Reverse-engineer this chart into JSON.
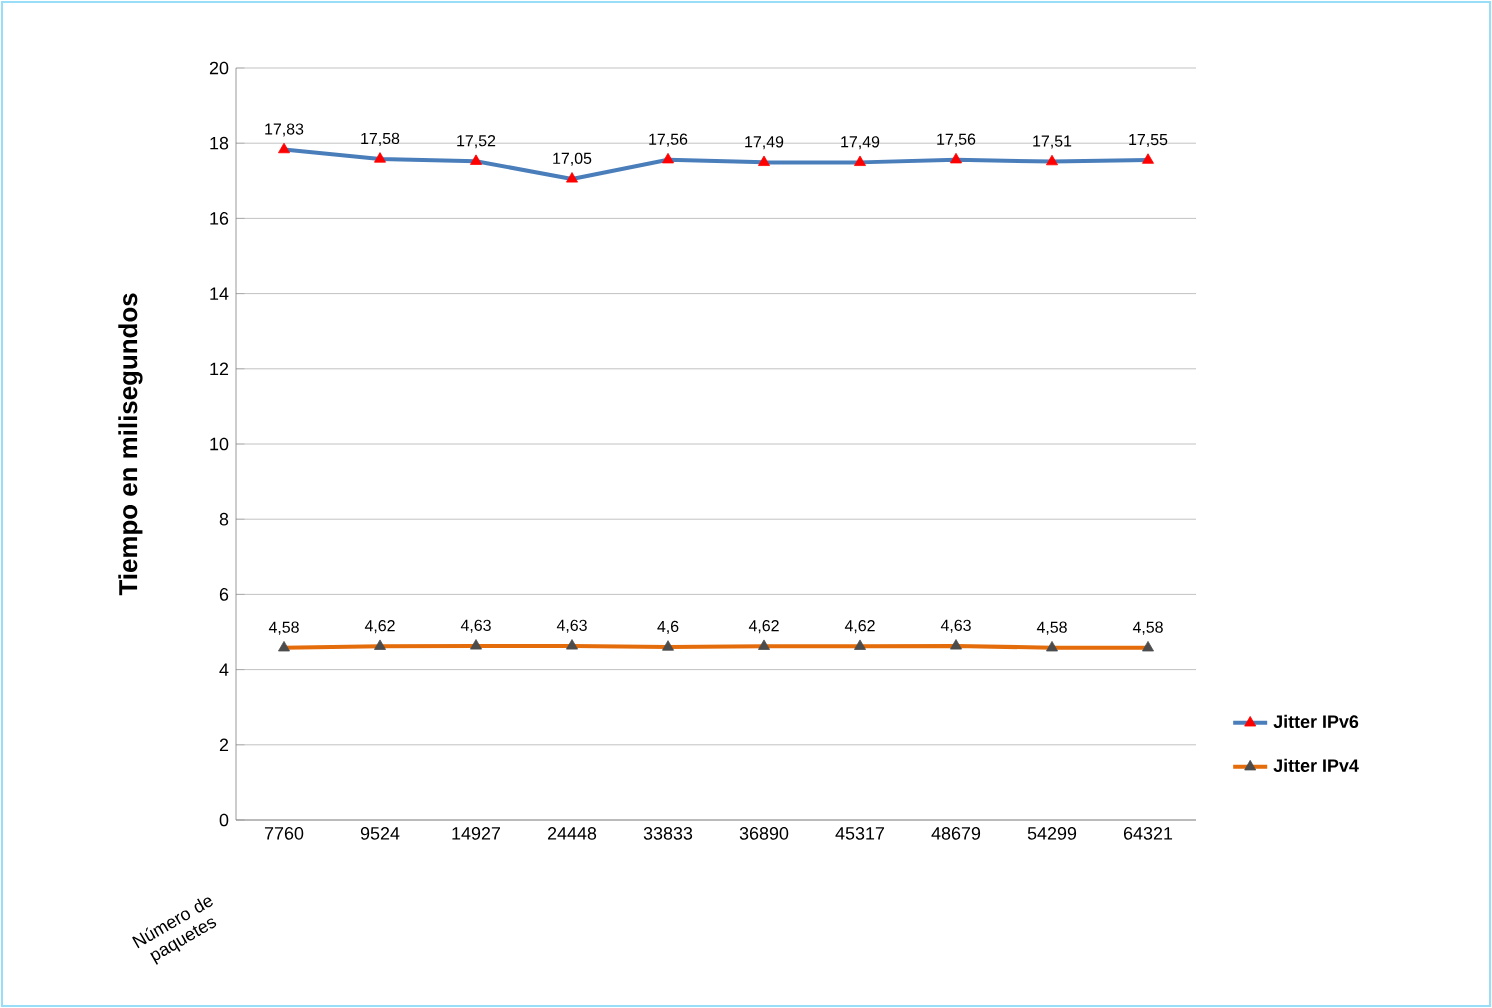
{
  "chart_data": {
    "type": "line",
    "xlabel": "Número de paquetes",
    "ylabel": "Tiempo en milisegundos",
    "categories": [
      "7760",
      "9524",
      "14927",
      "24448",
      "33833",
      "36890",
      "45317",
      "48679",
      "54299",
      "64321"
    ],
    "series": [
      {
        "name": "Jitter IPv6",
        "color": "#4a7ebb",
        "values": [
          17.83,
          17.58,
          17.52,
          17.05,
          17.56,
          17.49,
          17.49,
          17.56,
          17.51,
          17.55
        ],
        "value_labels": [
          "17,83",
          "17,58",
          "17,52",
          "17,05",
          "17,56",
          "17,49",
          "17,49",
          "17,56",
          "17,51",
          "17,55"
        ]
      },
      {
        "name": "Jitter IPv4",
        "color": "#e46c0a",
        "values": [
          4.58,
          4.62,
          4.63,
          4.63,
          4.6,
          4.62,
          4.62,
          4.63,
          4.58,
          4.58
        ],
        "value_labels": [
          "4,58",
          "4,62",
          "4,63",
          "4,63",
          "4,6",
          "4,62",
          "4,62",
          "4,63",
          "4,58",
          "4,58"
        ]
      }
    ],
    "ylim": [
      0,
      20
    ],
    "yticks": [
      0,
      2,
      4,
      6,
      8,
      10,
      12,
      14,
      16,
      18,
      20
    ],
    "grid": "y",
    "legend": "right",
    "marker": "triangle",
    "line_style": "solid"
  }
}
